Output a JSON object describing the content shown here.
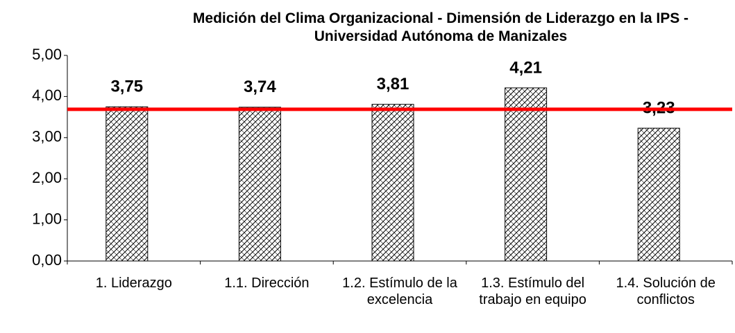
{
  "chart_data": {
    "type": "bar",
    "title": "Medición del Clima Organizacional - Dimensión de Liderazgo en la IPS - Universidad Autónoma de Manizales",
    "categories": [
      "1. Liderazgo",
      "1.1. Dirección",
      "1.2. Estímulo de la excelencia",
      "1.3. Estímulo del trabajo en equipo",
      "1.4. Solución de conflictos"
    ],
    "values": [
      3.75,
      3.74,
      3.81,
      4.21,
      3.23
    ],
    "value_labels": [
      "3,75",
      "3,74",
      "3,81",
      "4,21",
      "3,23"
    ],
    "color": "#000000",
    "ylim": [
      0,
      5
    ],
    "yticks": [
      {
        "value": 0,
        "label": "0,00"
      },
      {
        "value": 1,
        "label": "1,00"
      },
      {
        "value": 2,
        "label": "2,00"
      },
      {
        "value": 3,
        "label": "3,00"
      },
      {
        "value": 4,
        "label": "4,00"
      },
      {
        "value": 5,
        "label": "5,00"
      }
    ],
    "reference_line": {
      "value": 3.69,
      "color": "#ff0000"
    },
    "grid": false
  }
}
